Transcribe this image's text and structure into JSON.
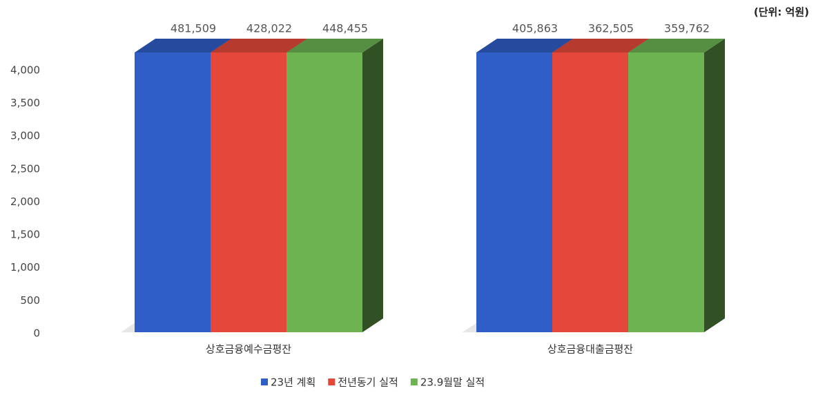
{
  "chart_data": {
    "type": "bar3d",
    "annotation": "(단위: 억원)",
    "categories": [
      "상호금융예수금평잔",
      "상호금융대출금평잔"
    ],
    "series": [
      {
        "name": "23년 계획",
        "color": "#2f5ec6",
        "values": [
          481509,
          405863
        ],
        "value_labels": [
          "481,509",
          "405,863"
        ]
      },
      {
        "name": "전년동기 실적",
        "color": "#e5483b",
        "values": [
          428022,
          362505
        ],
        "value_labels": [
          "428,022",
          "362,505"
        ]
      },
      {
        "name": "23.9월말 실적",
        "color": "#6db352",
        "values": [
          448455,
          359762
        ],
        "value_labels": [
          "448,455",
          "359,762"
        ]
      }
    ],
    "ylim": [
      0,
      4250
    ],
    "yticks": [
      0,
      500,
      {
        "value": 1000,
        "label": "1,000"
      },
      {
        "value": 1500,
        "label": "1,500"
      },
      {
        "value": 2000,
        "label": "2,000"
      },
      {
        "value": 2500,
        "label": "2,500"
      },
      {
        "value": 3000,
        "label": "3,000"
      },
      {
        "value": 3500,
        "label": "3,500"
      },
      {
        "value": 4000,
        "label": "4,000"
      }
    ],
    "grid": false
  }
}
